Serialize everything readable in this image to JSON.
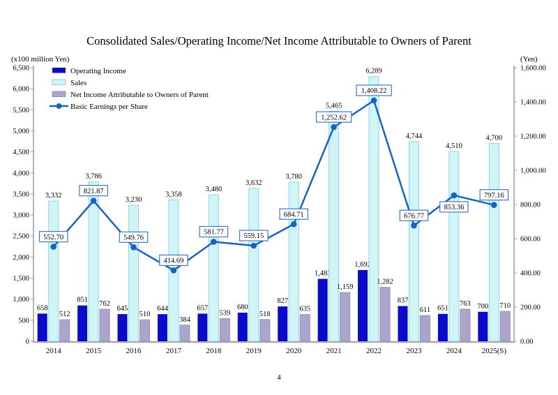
{
  "page": {
    "title": "Consolidated Sales/Operating Income/Net Income Attributable to Owners of Parent",
    "footer_page_number": "4"
  },
  "chart_data": {
    "type": "combo-bar-line",
    "title": "Consolidated Sales/Operating Income/Net Income Attributable to Owners of Parent",
    "categories": [
      "2014",
      "2015",
      "2016",
      "2017",
      "2018",
      "2019",
      "2020",
      "2021",
      "2022",
      "2023",
      "2024",
      "2025(S)"
    ],
    "left_axis": {
      "caption": "(x100 million Yen)",
      "min": 0,
      "max": 6500,
      "step": 500
    },
    "right_axis": {
      "caption": "(Yen)",
      "min": 0,
      "max": 1600,
      "step": 200
    },
    "gridlines": false,
    "legend_position": "top-left-inside",
    "colors": {
      "operating_income": "#0A0ACC",
      "sales_fill": "#CFF5F6",
      "sales_border": "#8FD4E4",
      "net_income_fill": "#ACA4CB",
      "net_income_border": "#9990BE",
      "eps_line": "#1B62BE",
      "label_box_border": "#3C78C8",
      "axis_gray": "#9B9B9B"
    },
    "series": [
      {
        "name": "Operating Income",
        "type": "bar",
        "axis": "left",
        "color": "#0A0ACC",
        "values": [
          658,
          851,
          645,
          644,
          657,
          680,
          827,
          1483,
          1692,
          837,
          651,
          700
        ]
      },
      {
        "name": "Sales",
        "type": "bar",
        "axis": "left",
        "color": "#CFF5F6",
        "border_color": "#8FD4E4",
        "values": [
          3332,
          3786,
          3230,
          3358,
          3480,
          3632,
          3780,
          5465,
          6289,
          4744,
          4510,
          4700
        ]
      },
      {
        "name": "Net Income Attributable to Owners of Parent",
        "type": "bar",
        "axis": "left",
        "color": "#ACA4CB",
        "border_color": "#9990BE",
        "values": [
          512,
          762,
          510,
          384,
          539,
          518,
          635,
          1159,
          1282,
          611,
          763,
          710
        ]
      },
      {
        "name": "Basic Earnings per Share",
        "type": "line",
        "axis": "right",
        "color": "#1B62BE",
        "values": [
          552.7,
          821.87,
          549.76,
          414.69,
          581.77,
          559.15,
          684.71,
          1252.62,
          1408.22,
          676.77,
          853.36,
          797.16
        ],
        "point_labels": [
          "552.70",
          "821.87",
          "549.76",
          "414.69",
          "581.77",
          "559.15",
          "684.71",
          "1,252.62",
          "1,408.22",
          "676.77",
          "853.36",
          "797.16"
        ],
        "label_side": [
          "above",
          "above",
          "above",
          "above",
          "above",
          "above",
          "above",
          "above",
          "above",
          "above",
          "below",
          "above"
        ]
      }
    ]
  }
}
